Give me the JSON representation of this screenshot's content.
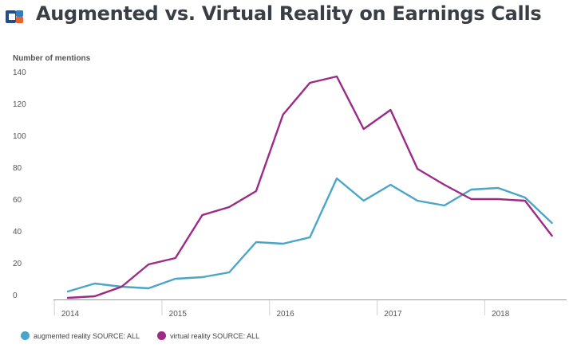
{
  "header": {
    "title": "Augmented vs. Virtual Reality on Earnings Calls",
    "logo_colors": [
      "#1e4f8c",
      "#e8622d"
    ]
  },
  "chart_data": {
    "type": "line",
    "title": "Augmented vs. Virtual Reality on Earnings Calls",
    "ylabel": "Number of mentions",
    "xlabel": "",
    "ylim": [
      0,
      140
    ],
    "y_ticks": [
      0,
      20,
      40,
      60,
      80,
      100,
      120,
      140
    ],
    "x_tick_labels": [
      "2014",
      "2015",
      "2016",
      "2017",
      "2018"
    ],
    "grid": false,
    "legend_position": "bottom-left",
    "x": [
      "2014 Q1",
      "2014 Q2",
      "2014 Q3",
      "2014 Q4",
      "2015 Q1",
      "2015 Q2",
      "2015 Q3",
      "2015 Q4",
      "2016 Q1",
      "2016 Q2",
      "2016 Q3",
      "2016 Q4",
      "2017 Q1",
      "2017 Q2",
      "2017 Q3",
      "2017 Q4",
      "2018 Q1",
      "2018 Q2",
      "2018 Q3"
    ],
    "series": [
      {
        "name": "augmented reality SOURCE: ALL",
        "color": "#4aa5c8",
        "values": [
          3,
          8,
          6,
          5,
          11,
          12,
          15,
          34,
          33,
          37,
          74,
          60,
          70,
          60,
          57,
          67,
          68,
          62,
          46
        ]
      },
      {
        "name": "virtual reality SOURCE: ALL",
        "color": "#9c2a86",
        "values": [
          -1,
          0,
          6,
          20,
          24,
          51,
          56,
          66,
          114,
          134,
          138,
          105,
          117,
          80,
          70,
          61,
          61,
          60,
          38
        ]
      }
    ]
  }
}
